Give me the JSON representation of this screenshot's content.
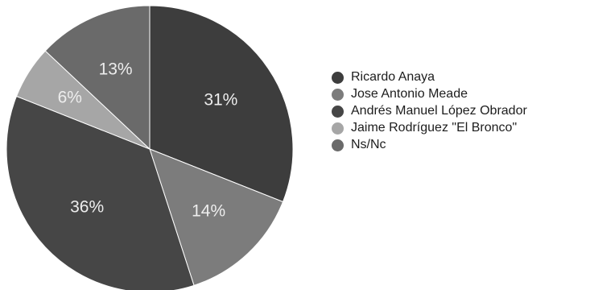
{
  "chart_data": {
    "type": "pie",
    "title": "",
    "legend_position": "right",
    "series": [
      {
        "name": "Ricardo Anaya",
        "value": 31,
        "label": "31%",
        "color": "#3d3d3d"
      },
      {
        "name": "Jose Antonio Meade",
        "value": 14,
        "label": "14%",
        "color": "#7c7c7c"
      },
      {
        "name": "Andrés Manuel López Obrador",
        "value": 36,
        "label": "36%",
        "color": "#464646"
      },
      {
        "name": "Jaime Rodríguez \"El Bronco\"",
        "value": 6,
        "label": "6%",
        "color": "#a6a6a6"
      },
      {
        "name": "Ns/Nc",
        "value": 13,
        "label": "13%",
        "color": "#6a6a6a"
      }
    ]
  }
}
